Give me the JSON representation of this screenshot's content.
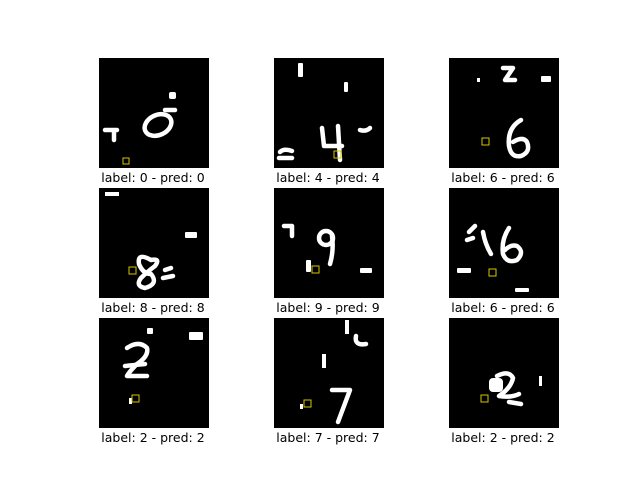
{
  "panels": [
    {
      "caption": "label: 0 - pred: 0"
    },
    {
      "caption": "label: 4 - pred: 4"
    },
    {
      "caption": "label: 6 - pred: 6"
    },
    {
      "caption": "label: 8 - pred: 8"
    },
    {
      "caption": "label: 9 - pred: 9"
    },
    {
      "caption": "label: 6 - pred: 6"
    },
    {
      "caption": "label: 2 - pred: 2"
    },
    {
      "caption": "label: 7 - pred: 7"
    },
    {
      "caption": "label: 2 - pred: 2"
    }
  ],
  "colors": {
    "background": "#ffffff",
    "image_bg": "#000000",
    "digit": "#ffffff",
    "marker": "#d8c400"
  }
}
